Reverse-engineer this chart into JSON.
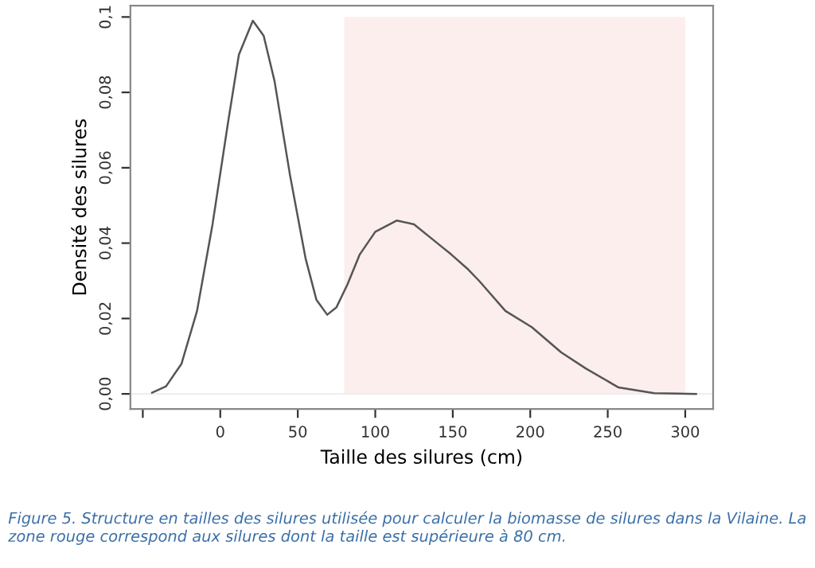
{
  "chart_data": {
    "type": "line",
    "xlabel": "Taille des silures (cm)",
    "ylabel": "Densité des silures",
    "x": [
      -44,
      -35,
      -25,
      -15,
      -5,
      5,
      12,
      21,
      28,
      35,
      45,
      55,
      62,
      69,
      75,
      82,
      90,
      100,
      114,
      125,
      140,
      149,
      160,
      167,
      184,
      201,
      220,
      236,
      257,
      280,
      295,
      307
    ],
    "series": [
      {
        "color": "#555555",
        "values": [
          0.0003,
          0.002,
          0.008,
          0.022,
          0.045,
          0.072,
          0.09,
          0.099,
          0.095,
          0.083,
          0.058,
          0.036,
          0.025,
          0.021,
          0.023,
          0.029,
          0.037,
          0.043,
          0.046,
          0.045,
          0.04,
          0.037,
          0.033,
          0.03,
          0.022,
          0.0177,
          0.011,
          0.0067,
          0.0017,
          0.0002,
          0.0001,
          0
        ]
      }
    ],
    "xlim": [
      -58,
      318
    ],
    "ylim": [
      -0.004,
      0.103
    ],
    "xticks": [
      {
        "value": -50,
        "label": null
      },
      0,
      50,
      100,
      150,
      200,
      250,
      300
    ],
    "yticks": [
      {
        "value": 0,
        "label": "0,00"
      },
      {
        "value": 0.02,
        "label": "0,02"
      },
      {
        "value": 0.04,
        "label": "0,04"
      },
      {
        "value": 0.06,
        "label": "0,06"
      },
      {
        "value": 0.08,
        "label": "0,08"
      },
      {
        "value": 0.1,
        "label": "0,1"
      }
    ],
    "bands": [
      {
        "axis": "x",
        "from": 80,
        "to": 300,
        "color": "#fdeeee"
      }
    ],
    "ref_lines": [
      {
        "axis": "y",
        "value": 0,
        "color": "#eeeeee"
      }
    ],
    "grid": false,
    "legend": false,
    "marker": "none",
    "line_style": "solid",
    "annotations": [
      "Figure 5. Structure en tailles des silures utilisée pour calculer la biomasse de silures dans la Vilaine. La zone rouge correspond aux silures dont la taille est supérieure à 80 cm."
    ]
  }
}
